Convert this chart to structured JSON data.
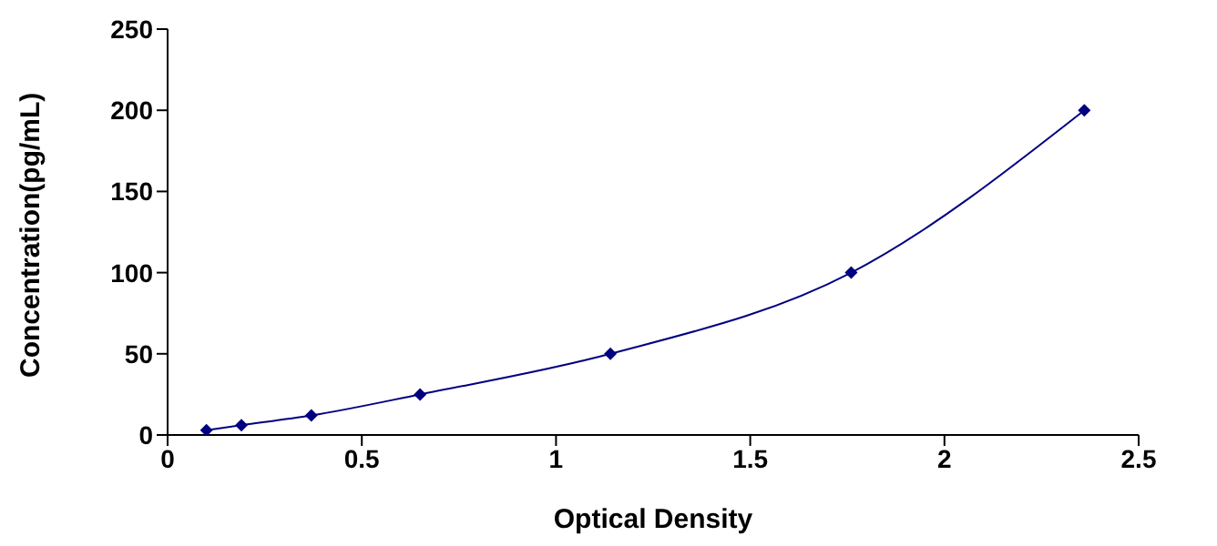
{
  "chart_data": {
    "type": "line",
    "xlabel": "Optical Density",
    "ylabel": "Concentration(pg/mL)",
    "x": [
      0.1,
      0.19,
      0.37,
      0.65,
      1.14,
      1.76,
      2.36
    ],
    "series": [
      {
        "color": "#000080",
        "values": [
          3,
          6,
          12,
          25,
          50,
          100,
          200
        ]
      }
    ],
    "xlim": [
      0,
      2.5
    ],
    "xticks": [
      0,
      0.5,
      1,
      1.5,
      2,
      2.5
    ],
    "ylim": [
      0,
      250
    ],
    "yticks": [
      0,
      50,
      100,
      150,
      200,
      250
    ],
    "marker": "diamond",
    "grid": false,
    "legend": false
  }
}
